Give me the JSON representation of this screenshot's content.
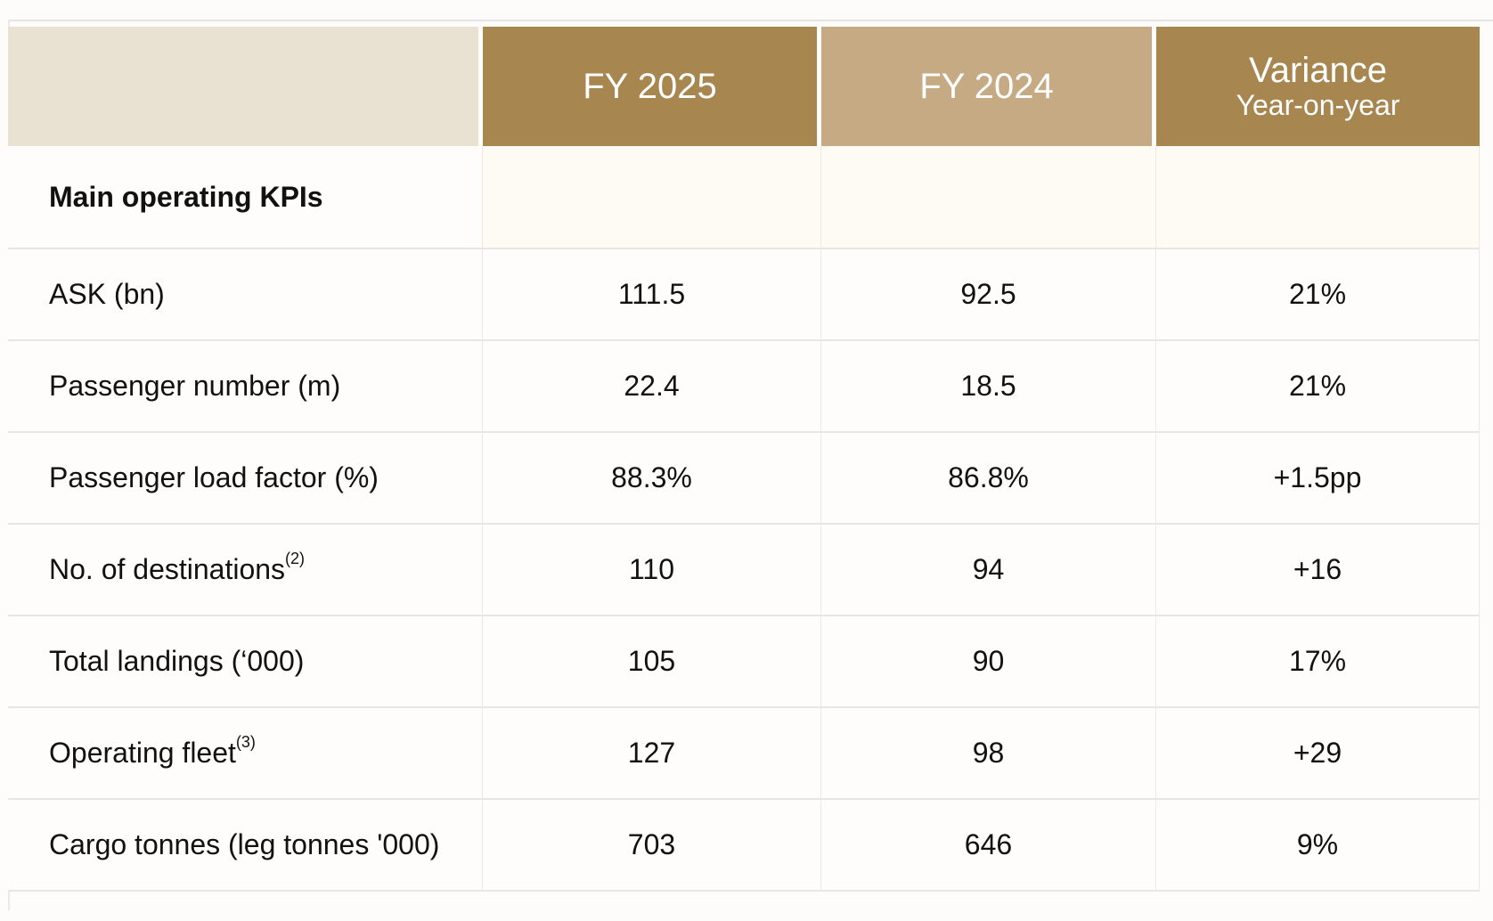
{
  "header": {
    "col1": "FY 2025",
    "col2": "FY 2024",
    "col3_title": "Variance",
    "col3_sub": "Year-on-year"
  },
  "section_title": "Main operating KPIs",
  "colors": {
    "dark_gold": "#a8864f",
    "light_gold": "#c6aa83",
    "cream": "#e9e2d3"
  },
  "rows": [
    {
      "label": "ASK (bn)",
      "note": "",
      "fy2025": "111.5",
      "fy2024": "92.5",
      "variance": "21%"
    },
    {
      "label": "Passenger number (m)",
      "note": "",
      "fy2025": "22.4",
      "fy2024": "18.5",
      "variance": "21%"
    },
    {
      "label": "Passenger load factor (%)",
      "note": "",
      "fy2025": "88.3%",
      "fy2024": "86.8%",
      "variance": "+1.5pp"
    },
    {
      "label": "No. of destinations",
      "note": "(2)",
      "fy2025": "110",
      "fy2024": "94",
      "variance": "+16"
    },
    {
      "label": "Total landings (‘000)",
      "note": "",
      "fy2025": "105",
      "fy2024": "90",
      "variance": "17%"
    },
    {
      "label": "Operating fleet",
      "note": "(3)",
      "fy2025": "127",
      "fy2024": "98",
      "variance": "+29"
    },
    {
      "label": "Cargo tonnes (leg tonnes '000)",
      "note": "",
      "fy2025": "703",
      "fy2024": "646",
      "variance": "9%"
    }
  ]
}
